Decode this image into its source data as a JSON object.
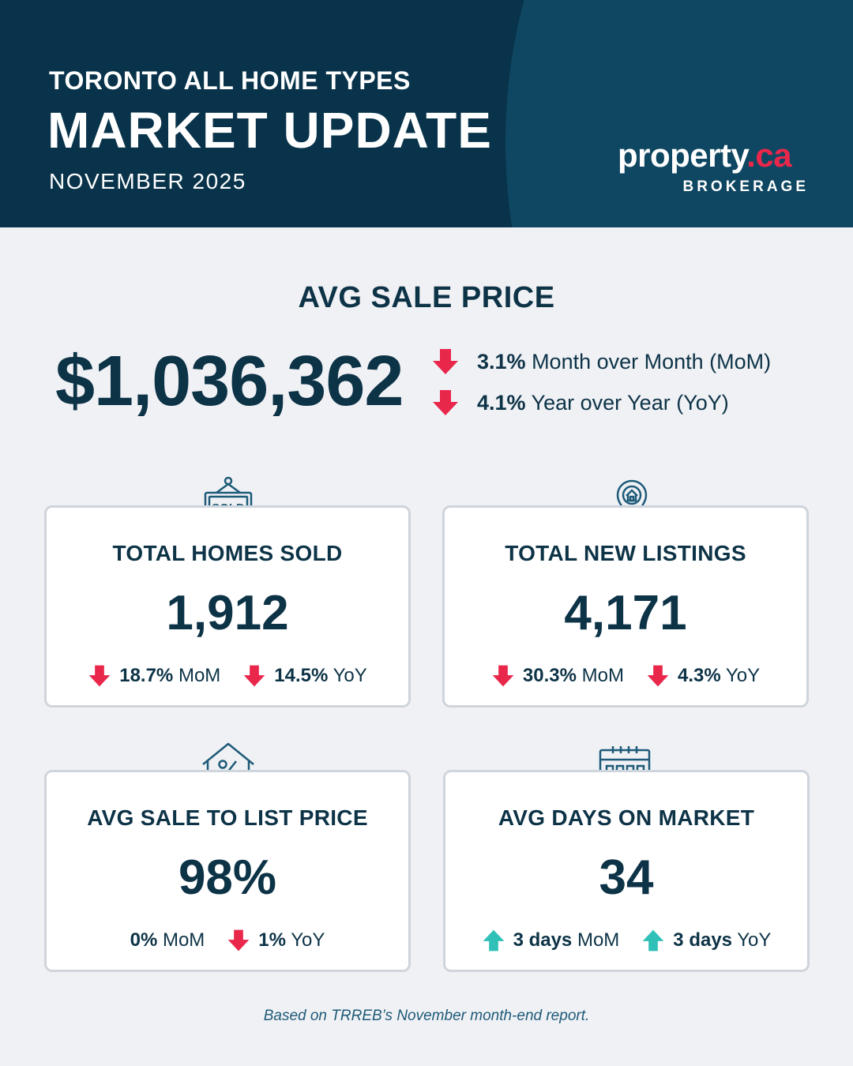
{
  "header": {
    "kicker": "TORONTO ALL HOME TYPES",
    "title": "MARKET UPDATE",
    "date": "NOVEMBER 2025"
  },
  "logo": {
    "word": "property",
    "dot_ca": ".ca",
    "sub": "BROKERAGE"
  },
  "avg_sale_price": {
    "title": "AVG SALE PRICE",
    "value": "$1,036,362",
    "changes": [
      {
        "direction": "down",
        "pct": "3.1%",
        "label": "Month over Month (MoM)"
      },
      {
        "direction": "down",
        "pct": "4.1%",
        "label": "Year over Year (YoY)"
      }
    ]
  },
  "cards": [
    {
      "icon": "sold-sign-icon",
      "title": "TOTAL HOMES SOLD",
      "value": "1,912",
      "stats": [
        {
          "direction": "down",
          "value": "18.7%",
          "unit": "MoM"
        },
        {
          "direction": "down",
          "value": "14.5%",
          "unit": "YoY"
        }
      ]
    },
    {
      "icon": "location-pin-house-icon",
      "title": "TOTAL NEW LISTINGS",
      "value": "4,171",
      "stats": [
        {
          "direction": "down",
          "value": "30.3%",
          "unit": "MoM"
        },
        {
          "direction": "down",
          "value": "4.3%",
          "unit": "YoY"
        }
      ]
    },
    {
      "icon": "house-percent-icon",
      "title": "AVG SALE TO LIST PRICE",
      "value": "98%",
      "stats": [
        {
          "direction": "none",
          "value": "0%",
          "unit": "MoM"
        },
        {
          "direction": "down",
          "value": "1%",
          "unit": "YoY"
        }
      ]
    },
    {
      "icon": "calendar-icon",
      "title": "AVG DAYS ON MARKET",
      "value": "34",
      "stats": [
        {
          "direction": "up",
          "value": "3 days",
          "unit": "MoM"
        },
        {
          "direction": "up",
          "value": "3 days",
          "unit": "YoY"
        }
      ]
    }
  ],
  "footer": "Based on TRREB’s November month-end report.",
  "colors": {
    "navy": "#08334a",
    "navy_light": "#0f4762",
    "text": "#0d3347",
    "down": "#e8274b",
    "up": "#2fc0b8",
    "background": "#f0f1f5"
  }
}
